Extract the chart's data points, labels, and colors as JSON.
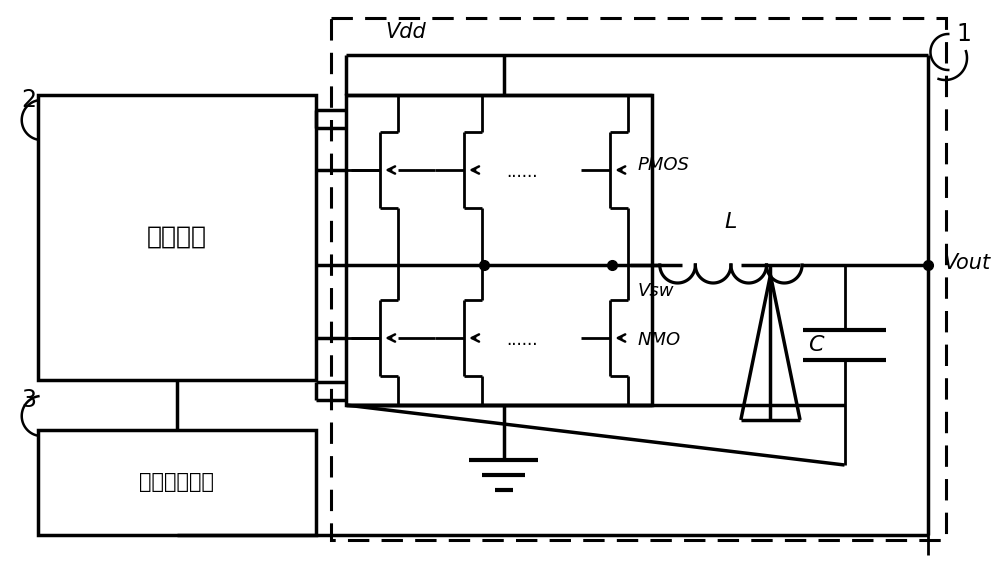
{
  "bg": "#ffffff",
  "lc": "#000000",
  "lw": 2.0,
  "lw_thick": 2.5,
  "text_vdd": "Vdd",
  "text_vout": "Vout",
  "text_vsw": "Vsw",
  "text_pmos": "PMOS",
  "text_nmo": "NMO",
  "text_L": "L",
  "text_C": "C",
  "text_1": "1",
  "text_2": "2",
  "text_3": "3",
  "text_drive": "驱动单元",
  "text_feedback": "反馈控制单元",
  "text_dots": "......",
  "fig_w": 10.0,
  "fig_h": 5.88,
  "dpi": 100
}
